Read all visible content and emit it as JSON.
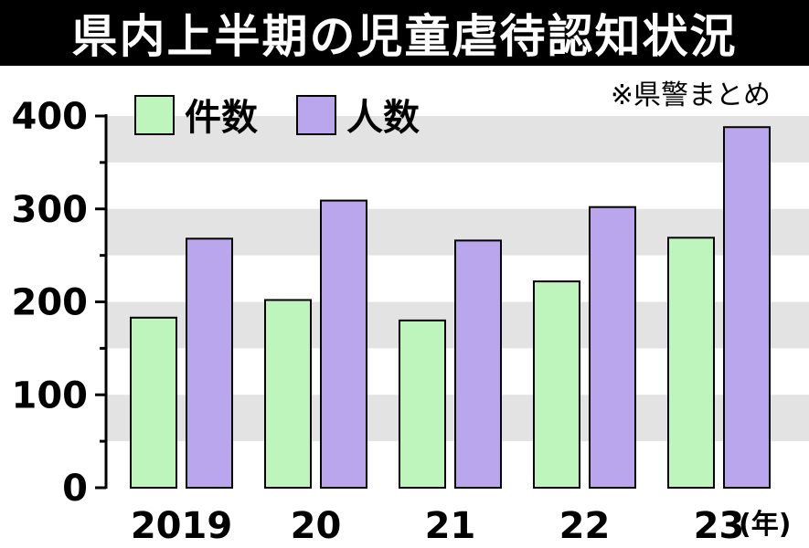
{
  "chart_data": {
    "type": "bar",
    "title": "県内上半期の児童虐待認知状況",
    "note": "※県警まとめ",
    "categories": [
      "2019",
      "20",
      "21",
      "22",
      "23"
    ],
    "x_unit": "(年)",
    "series": [
      {
        "name": "件数",
        "values": [
          183,
          202,
          180,
          222,
          269
        ],
        "color": "#bdf5bd"
      },
      {
        "name": "人数",
        "values": [
          268,
          309,
          266,
          302,
          388
        ],
        "color": "#b9a6ec"
      }
    ],
    "ylim": [
      0,
      400
    ],
    "yticks": [
      0,
      100,
      200,
      300,
      400
    ],
    "legend_position": "top-left",
    "band_color": "#e3e3e3"
  }
}
